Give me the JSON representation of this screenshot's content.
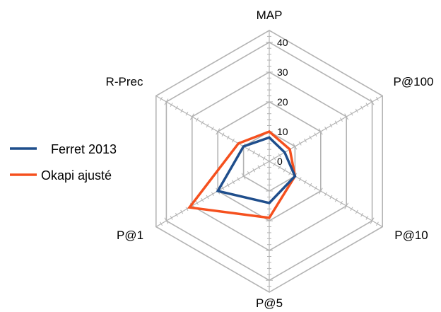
{
  "chart_data": {
    "type": "radar",
    "axes": [
      "MAP",
      "P@100",
      "P@10",
      "P@5",
      "P@1",
      "R-Prec"
    ],
    "ticks": [
      "0",
      "10",
      "20",
      "30",
      "40"
    ],
    "range": [
      0,
      44
    ],
    "grid": true,
    "legend_position": "left",
    "series": [
      {
        "name": "Ferret 2013",
        "color": "#1f4e8c",
        "values": [
          8,
          6,
          10,
          14,
          20,
          10
        ]
      },
      {
        "name": "Okapi ajusté",
        "color": "#f5501e",
        "values": [
          10,
          8,
          10,
          19,
          31,
          12
        ]
      }
    ]
  }
}
